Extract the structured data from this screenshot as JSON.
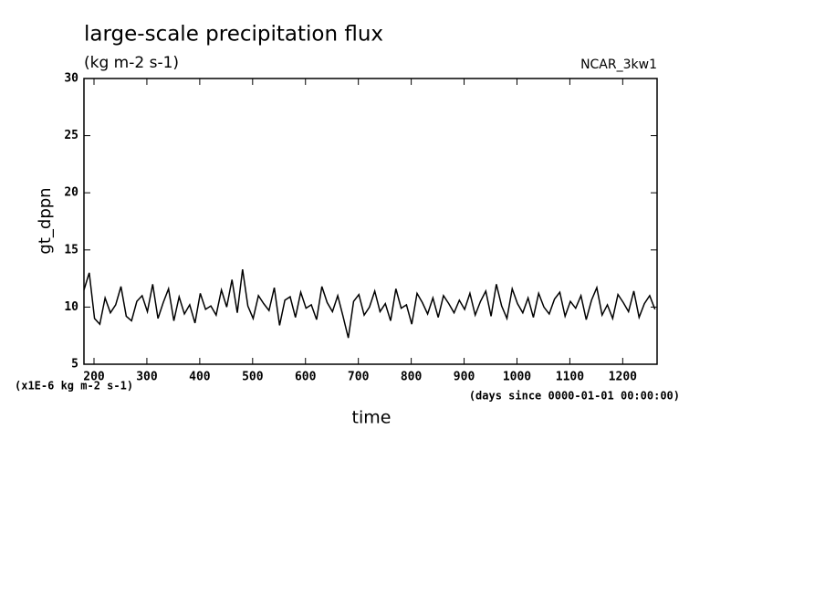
{
  "chart_data": {
    "type": "line",
    "title": "large-scale precipitation flux",
    "subtitle": "(kg m-2 s-1)",
    "annotation": "NCAR_3kw1",
    "y_label": "gt_dppn",
    "x_label": "time",
    "y_units": "(x1E-6 kg m-2 s-1)",
    "x_units": "(days since 0000-01-01 00:00:00)",
    "color": "#000000",
    "xlim": [
      181,
      1265
    ],
    "ylim": [
      5,
      30
    ],
    "xticks": [
      200,
      300,
      400,
      500,
      600,
      700,
      800,
      900,
      1000,
      1100,
      1200
    ],
    "yticks": [
      5,
      10,
      15,
      20,
      25,
      30
    ],
    "x": [
      181,
      191,
      201,
      211,
      221,
      231,
      241,
      251,
      261,
      271,
      281,
      291,
      301,
      311,
      321,
      331,
      341,
      351,
      361,
      371,
      381,
      391,
      401,
      411,
      421,
      431,
      441,
      451,
      461,
      471,
      481,
      491,
      501,
      511,
      521,
      531,
      541,
      551,
      561,
      571,
      581,
      591,
      601,
      611,
      621,
      631,
      641,
      651,
      661,
      671,
      681,
      691,
      701,
      711,
      721,
      731,
      741,
      751,
      761,
      771,
      781,
      791,
      801,
      811,
      821,
      831,
      841,
      851,
      861,
      871,
      881,
      891,
      901,
      911,
      921,
      931,
      941,
      951,
      961,
      971,
      981,
      991,
      1001,
      1011,
      1021,
      1031,
      1041,
      1051,
      1061,
      1071,
      1081,
      1091,
      1101,
      1111,
      1121,
      1131,
      1141,
      1151,
      1161,
      1171,
      1181,
      1191,
      1201,
      1211,
      1221,
      1231,
      1241,
      1251,
      1261
    ],
    "values": [
      11.5,
      13.0,
      9.0,
      8.5,
      10.8,
      9.5,
      10.2,
      11.8,
      9.2,
      8.8,
      10.5,
      11.0,
      9.6,
      12.0,
      9.0,
      10.4,
      11.6,
      8.8,
      10.9,
      9.4,
      10.2,
      8.6,
      11.2,
      9.8,
      10.1,
      9.3,
      11.5,
      10.0,
      12.4,
      9.5,
      13.3,
      10.1,
      9.0,
      11.0,
      10.3,
      9.7,
      11.7,
      8.4,
      10.6,
      10.9,
      9.1,
      11.3,
      9.9,
      10.2,
      8.9,
      11.8,
      10.4,
      9.6,
      11.0,
      9.2,
      7.3,
      10.5,
      11.1,
      9.3,
      10.0,
      11.4,
      9.6,
      10.3,
      8.8,
      11.6,
      9.9,
      10.2,
      8.5,
      11.2,
      10.4,
      9.4,
      10.8,
      9.1,
      11.0,
      10.3,
      9.5,
      10.6,
      9.8,
      11.2,
      9.3,
      10.5,
      11.4,
      9.2,
      12.0,
      10.1,
      9.0,
      11.6,
      10.3,
      9.5,
      10.8,
      9.1,
      11.2,
      10.0,
      9.4,
      10.7,
      11.3,
      9.2,
      10.5,
      9.9,
      11.0,
      8.9,
      10.6,
      11.7,
      9.3,
      10.2,
      9.0,
      11.1,
      10.4,
      9.6,
      11.4,
      9.1,
      10.3,
      11.0,
      9.8
    ]
  }
}
